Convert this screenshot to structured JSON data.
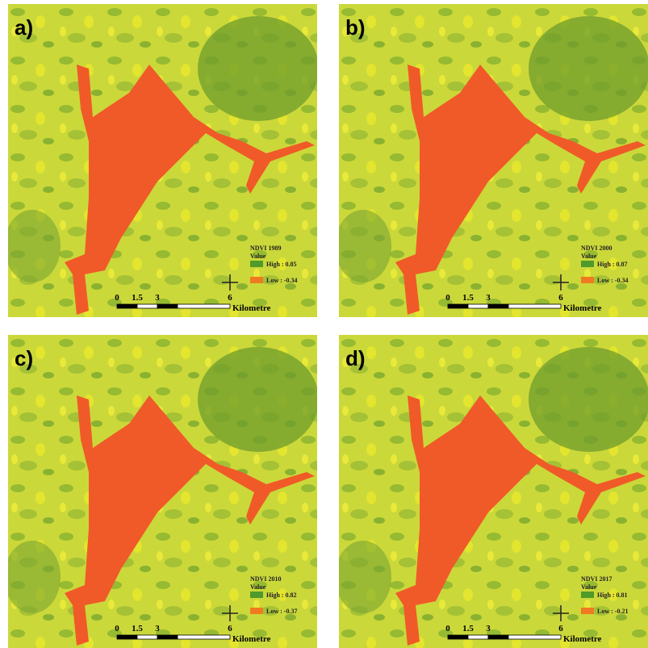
{
  "panels": [
    {
      "label": "a)",
      "legend": {
        "title": "NDVI 1989",
        "field": "Value",
        "high": "High : 0.85",
        "low": "Low : -0.34"
      },
      "scale": {
        "ticks": [
          "0",
          "1.5",
          "3",
          "6"
        ],
        "unit": "Kilometre"
      }
    },
    {
      "label": "b)",
      "legend": {
        "title": "NDVI 2000",
        "field": "Value",
        "high": "High : 0.87",
        "low": "Low : -0.34"
      },
      "scale": {
        "ticks": [
          "0",
          "1.5",
          "3",
          "6"
        ],
        "unit": "Kilometre"
      }
    },
    {
      "label": "c)",
      "legend": {
        "title": "NDVI 2010",
        "field": "Value",
        "high": "High : 0.82",
        "low": "Low : -0.37"
      },
      "scale": {
        "ticks": [
          "0",
          "1.5",
          "3",
          "6"
        ],
        "unit": "Kilometre"
      }
    },
    {
      "label": "d)",
      "legend": {
        "title": "NDVI 2017",
        "field": "Value",
        "high": "High : 0.81",
        "low": "Low : -0.21"
      },
      "scale": {
        "ticks": [
          "0",
          "1.5",
          "3",
          "6"
        ],
        "unit": "Kilometre"
      }
    }
  ]
}
